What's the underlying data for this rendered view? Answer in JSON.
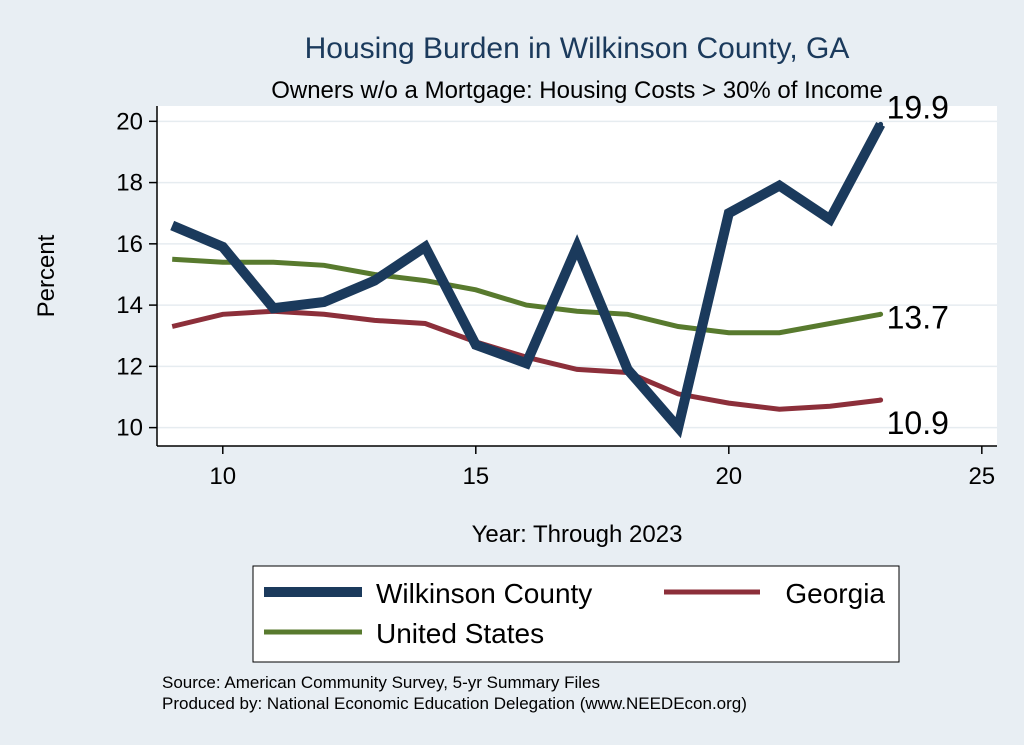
{
  "chart_data": {
    "type": "line",
    "title": "Housing Burden in Wilkinson County, GA",
    "subtitle": "Owners w/o a Mortgage: Housing Costs > 30% of Income",
    "xlabel": "Year: Through 2023",
    "ylabel": "Percent",
    "xlim": [
      8.7,
      25.3
    ],
    "ylim": [
      9.4,
      20.5
    ],
    "xticks": [
      10,
      15,
      20,
      25
    ],
    "yticks": [
      10,
      12,
      14,
      16,
      18,
      20
    ],
    "grid": true,
    "legend_position": "bottom",
    "x": [
      9,
      10,
      11,
      12,
      13,
      14,
      15,
      16,
      17,
      18,
      19,
      20,
      21,
      22,
      23
    ],
    "series": [
      {
        "name": "Wilkinson County",
        "color": "#1b3a5c",
        "values": [
          16.6,
          15.9,
          13.9,
          14.1,
          14.8,
          15.9,
          12.7,
          12.1,
          15.9,
          11.9,
          10.0,
          17.0,
          17.9,
          16.8,
          19.9
        ],
        "end_label": "19.9"
      },
      {
        "name": "Georgia",
        "color": "#8c2f3a",
        "values": [
          13.3,
          13.7,
          13.8,
          13.7,
          13.5,
          13.4,
          12.8,
          12.3,
          11.9,
          11.8,
          11.1,
          10.8,
          10.6,
          10.7,
          10.9
        ],
        "end_label": "10.9"
      },
      {
        "name": "United States",
        "color": "#587a2e",
        "values": [
          15.5,
          15.4,
          15.4,
          15.3,
          15.0,
          14.8,
          14.5,
          14.0,
          13.8,
          13.7,
          13.3,
          13.1,
          13.1,
          13.4,
          13.7
        ],
        "end_label": "13.7"
      }
    ]
  },
  "notes": {
    "source": "Source: American Community Survey, 5-yr Summary Files",
    "produced": "Produced by: National Economic Education Delegation (www.NEEDEcon.org)"
  }
}
